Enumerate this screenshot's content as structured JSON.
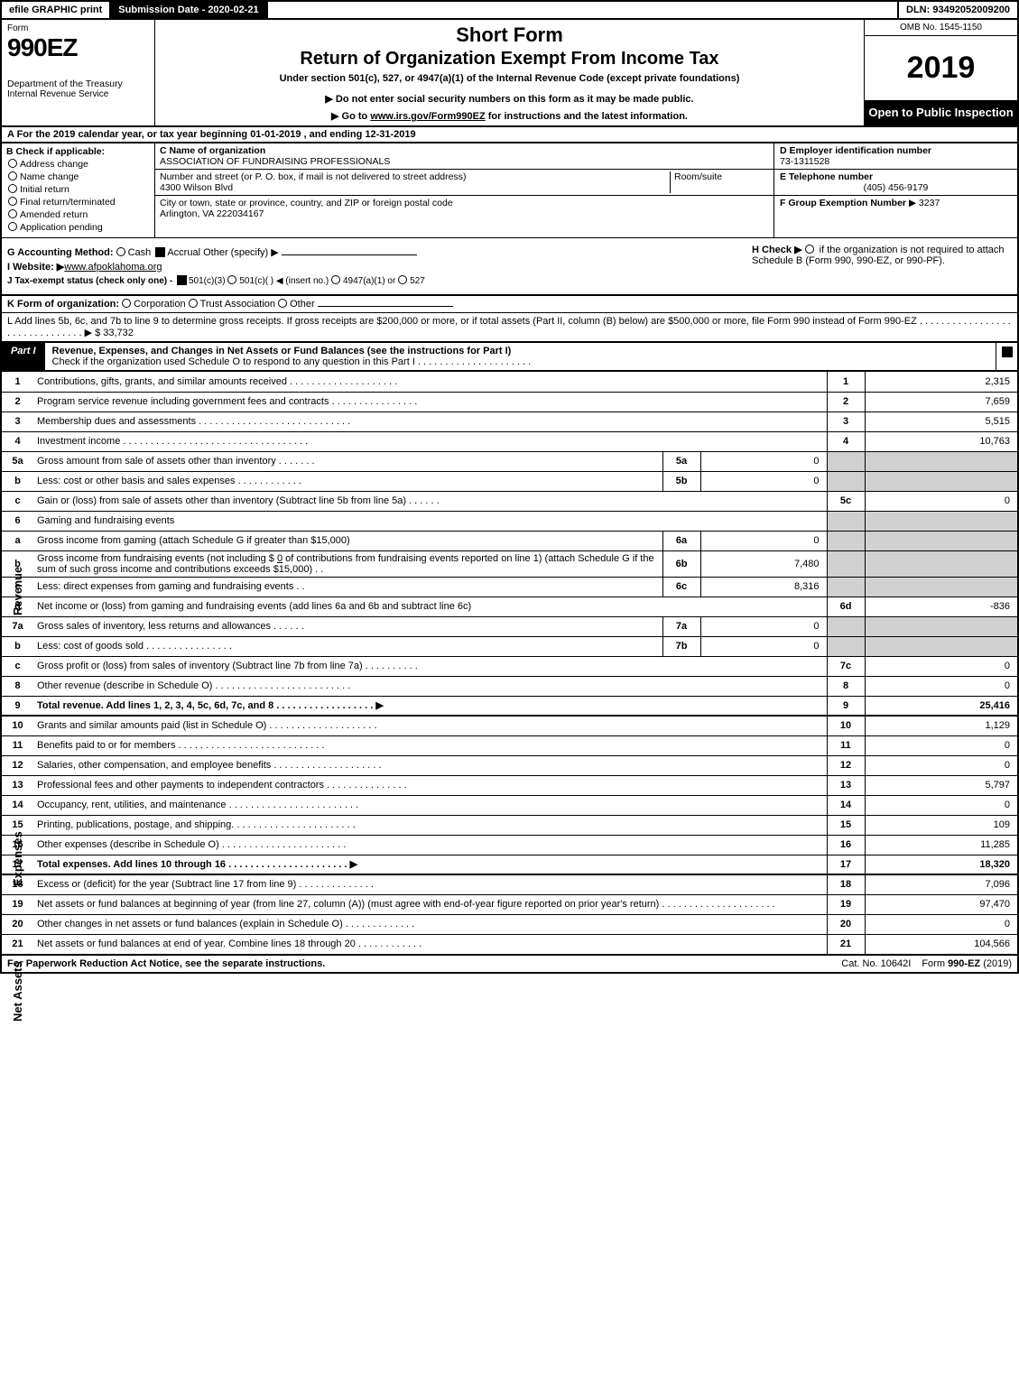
{
  "topbar": {
    "print": "efile GRAPHIC print",
    "subdate": "Submission Date - 2020-02-21",
    "dln": "DLN: 93492052009200"
  },
  "header": {
    "form_word": "Form",
    "form_no": "990EZ",
    "dept": "Department of the Treasury",
    "irs": "Internal Revenue Service",
    "short": "Short Form",
    "title": "Return of Organization Exempt From Income Tax",
    "sub": "Under section 501(c), 527, or 4947(a)(1) of the Internal Revenue Code (except private foundations)",
    "note": "▶ Do not enter social security numbers on this form as it may be made public.",
    "goto_pre": "▶ Go to ",
    "goto_link": "www.irs.gov/Form990EZ",
    "goto_post": " for instructions and the latest information.",
    "omb": "OMB No. 1545-1150",
    "year": "2019",
    "open": "Open to Public Inspection"
  },
  "row_a": "A  For the 2019 calendar year, or tax year beginning 01-01-2019 , and ending 12-31-2019",
  "col_b": {
    "head": "B  Check if applicable:",
    "items": [
      "Address change",
      "Name change",
      "Initial return",
      "Final return/terminated",
      "Amended return",
      "Application pending"
    ]
  },
  "col_c": {
    "name_lbl": "C Name of organization",
    "name": "ASSOCIATION OF FUNDRAISING PROFESSIONALS",
    "street_lbl": "Number and street (or P. O. box, if mail is not delivered to street address)",
    "street": "4300 Wilson Blvd",
    "room_lbl": "Room/suite",
    "city_lbl": "City or town, state or province, country, and ZIP or foreign postal code",
    "city": "Arlington, VA  222034167"
  },
  "col_d": {
    "ein_lbl": "D Employer identification number",
    "ein": "73-1311528",
    "tel_lbl": "E Telephone number",
    "tel": "(405) 456-9179",
    "grp_lbl": "F Group Exemption Number",
    "grp": "▶ 3237"
  },
  "g": {
    "acct": "G Accounting Method:",
    "cash": "Cash",
    "accrual": "Accrual",
    "other": "Other (specify) ▶",
    "h": "H   Check ▶",
    "h_txt": "if the organization is not required to attach Schedule B (Form 990, 990-EZ, or 990-PF).",
    "site_lbl": "I Website: ▶",
    "site": "www.afpoklahoma.org",
    "j": "J Tax-exempt status (check only one) -",
    "j_501c3": "501(c)(3)",
    "j_501c": "501(c)(  )",
    "j_ins": "◀ (insert no.)",
    "j_4947": "4947(a)(1) or",
    "j_527": "527"
  },
  "k": {
    "lbl": "K Form of organization:",
    "opts": [
      "Corporation",
      "Trust",
      "Association",
      "Other"
    ]
  },
  "l": {
    "txt": "L Add lines 5b, 6c, and 7b to line 9 to determine gross receipts. If gross receipts are $200,000 or more, or if total assets (Part II, column (B) below) are $500,000 or more, file Form 990 instead of Form 990-EZ . . . . . . . . . . . . . . . . . . . . . . . . . . . . . . .  ▶ $ 33,732"
  },
  "part1": {
    "tab": "Part I",
    "title": "Revenue, Expenses, and Changes in Net Assets or Fund Balances (see the instructions for Part I)",
    "check": "Check if the organization used Schedule O to respond to any question in this Part I . . . . . . . . . . . . . . . . . . . . ."
  },
  "sections": {
    "revenue": "Revenue",
    "expenses": "Expenses",
    "netassets": "Net Assets"
  },
  "lines": {
    "l1": {
      "n": "1",
      "d": "Contributions, gifts, grants, and similar amounts received  . . . . . . . . . . . . . . . . . . . .",
      "box": "1",
      "v": "2,315"
    },
    "l2": {
      "n": "2",
      "d": "Program service revenue including government fees and contracts  . . . . . . . . . . . . . . . .",
      "box": "2",
      "v": "7,659"
    },
    "l3": {
      "n": "3",
      "d": "Membership dues and assessments  . . . . . . . . . . . . . . . . . . . . . . . . . . . .",
      "box": "3",
      "v": "5,515"
    },
    "l4": {
      "n": "4",
      "d": "Investment income  . . . . . . . . . . . . . . . . . . . . . . . . . . . . . . . . . .",
      "box": "4",
      "v": "10,763"
    },
    "l5a": {
      "n": "5a",
      "d": "Gross amount from sale of assets other than inventory  . . . . . . .",
      "mb": "5a",
      "mv": "0"
    },
    "l5b": {
      "n": "b",
      "d": "Less: cost or other basis and sales expenses  . . . . . . . . . . . .",
      "mb": "5b",
      "mv": "0"
    },
    "l5c": {
      "n": "c",
      "d": "Gain or (loss) from sale of assets other than inventory (Subtract line 5b from line 5a)  . . . . . .",
      "box": "5c",
      "v": "0"
    },
    "l6": {
      "n": "6",
      "d": "Gaming and fundraising events"
    },
    "l6a": {
      "n": "a",
      "d": "Gross income from gaming (attach Schedule G if greater than $15,000)",
      "mb": "6a",
      "mv": "0"
    },
    "l6b": {
      "n": "b",
      "d1": "Gross income from fundraising events (not including $ ",
      "amt": "0",
      "d2": " of contributions from fundraising events reported on line 1) (attach Schedule G if the sum of such gross income and contributions exceeds $15,000)   . .",
      "mb": "6b",
      "mv": "7,480"
    },
    "l6c": {
      "n": "c",
      "d": "Less: direct expenses from gaming and fundraising events    . .",
      "mb": "6c",
      "mv": "8,316"
    },
    "l6d": {
      "n": "d",
      "d": "Net income or (loss) from gaming and fundraising events (add lines 6a and 6b and subtract line 6c)",
      "box": "6d",
      "v": "-836"
    },
    "l7a": {
      "n": "7a",
      "d": "Gross sales of inventory, less returns and allowances  . . . . . .",
      "mb": "7a",
      "mv": "0"
    },
    "l7b": {
      "n": "b",
      "d": "Less: cost of goods sold   . . . . . . . . . . . . . . . .",
      "mb": "7b",
      "mv": "0"
    },
    "l7c": {
      "n": "c",
      "d": "Gross profit or (loss) from sales of inventory (Subtract line 7b from line 7a)  . . . . . . . . . .",
      "box": "7c",
      "v": "0"
    },
    "l8": {
      "n": "8",
      "d": "Other revenue (describe in Schedule O)  . . . . . . . . . . . . . . . . . . . . . . . . .",
      "box": "8",
      "v": "0"
    },
    "l9": {
      "n": "9",
      "d": "Total revenue. Add lines 1, 2, 3, 4, 5c, 6d, 7c, and 8  . . . . . . . . . . . . . . . . . .   ▶",
      "box": "9",
      "v": "25,416",
      "bold": true
    },
    "l10": {
      "n": "10",
      "d": "Grants and similar amounts paid (list in Schedule O)  . . . . . . . . . . . . . . . . . . . .",
      "box": "10",
      "v": "1,129"
    },
    "l11": {
      "n": "11",
      "d": "Benefits paid to or for members   . . . . . . . . . . . . . . . . . . . . . . . . . . .",
      "box": "11",
      "v": "0"
    },
    "l12": {
      "n": "12",
      "d": "Salaries, other compensation, and employee benefits . . . . . . . . . . . . . . . . . . . .",
      "box": "12",
      "v": "0"
    },
    "l13": {
      "n": "13",
      "d": "Professional fees and other payments to independent contractors  . . . . . . . . . . . . . . .",
      "box": "13",
      "v": "5,797"
    },
    "l14": {
      "n": "14",
      "d": "Occupancy, rent, utilities, and maintenance . . . . . . . . . . . . . . . . . . . . . . . .",
      "box": "14",
      "v": "0"
    },
    "l15": {
      "n": "15",
      "d": "Printing, publications, postage, and shipping.  . . . . . . . . . . . . . . . . . . . . . .",
      "box": "15",
      "v": "109"
    },
    "l16": {
      "n": "16",
      "d": "Other expenses (describe in Schedule O)   . . . . . . . . . . . . . . . . . . . . . . .",
      "box": "16",
      "v": "11,285"
    },
    "l17": {
      "n": "17",
      "d": "Total expenses. Add lines 10 through 16   . . . . . . . . . . . . . . . . . . . . . .  ▶",
      "box": "17",
      "v": "18,320",
      "bold": true
    },
    "l18": {
      "n": "18",
      "d": "Excess or (deficit) for the year (Subtract line 17 from line 9)    . . . . . . . . . . . . . .",
      "box": "18",
      "v": "7,096"
    },
    "l19": {
      "n": "19",
      "d": "Net assets or fund balances at beginning of year (from line 27, column (A)) (must agree with end-of-year figure reported on prior year's return) . . . . . . . . . . . . . . . . . . . . .",
      "box": "19",
      "v": "97,470"
    },
    "l20": {
      "n": "20",
      "d": "Other changes in net assets or fund balances (explain in Schedule O) . . . . . . . . . . . . .",
      "box": "20",
      "v": "0"
    },
    "l21": {
      "n": "21",
      "d": "Net assets or fund balances at end of year. Combine lines 18 through 20 . . . . . . . . . . . .",
      "box": "21",
      "v": "104,566"
    }
  },
  "footer": {
    "f1": "For Paperwork Reduction Act Notice, see the separate instructions.",
    "f2": "Cat. No. 10642I",
    "f3": "Form 990-EZ (2019)"
  }
}
